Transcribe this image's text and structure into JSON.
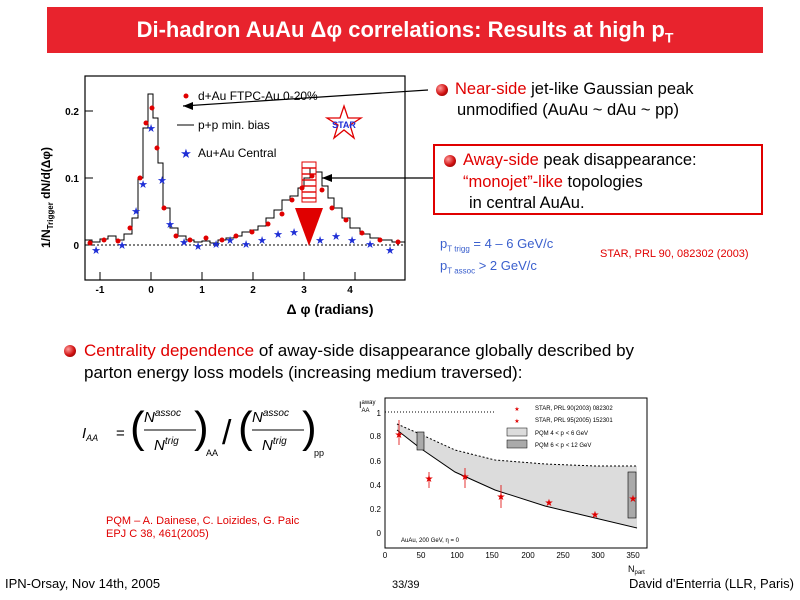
{
  "title": {
    "main": "Di-hadron AuAu Δφ correlations: Results at high p",
    "sub": "T"
  },
  "left_plot": {
    "ylabel": "1/N",
    "ylabel_sub": "Trigger",
    "ylabel_rest": " dN/d(Δφ)",
    "xlabel": "Δ φ (radians)",
    "yticks": [
      "0.2",
      "0.1",
      "0"
    ],
    "xticks": [
      "-1",
      "0",
      "1",
      "2",
      "3",
      "4"
    ],
    "legend": [
      "d+Au FTPC-Au 0-20%",
      "p+p min. bias",
      "Au+Au Central"
    ],
    "logo": "STAR"
  },
  "bullets": {
    "near_highlight": "Near-side",
    "near_rest": " jet-like Gaussian peak",
    "near_line2": "unmodified (AuAu ~ dAu ~ pp)",
    "away_highlight": "Away-side",
    "away_rest": " peak disappearance:",
    "away_line2_hl": "“monojet”-like",
    "away_line2_rest": " topologies",
    "away_line3": "in central AuAu.",
    "central_highlight": "Centrality dependence",
    "central_rest": " of away-side disappearance globally described by",
    "central_line2": "parton energy loss models (increasing medium traversed):"
  },
  "cuts": {
    "trig": "p",
    "trig_sub": "T trigg",
    "trig_rest": " = 4 – 6 GeV/c",
    "assoc": "p",
    "assoc_sub": "T assoc",
    "assoc_rest": " > 2 GeV/c"
  },
  "ref_star": "STAR, PRL 90, 082302 (2003)",
  "formula": {
    "lhs": "I",
    "lhs_sub": "AA",
    "num": "N",
    "num_sup": "assoc",
    "den": "N",
    "den_sup": "trig",
    "sub1": "AA",
    "sub2": "pp"
  },
  "ref_pqm": {
    "line1": "PQM – A. Dainese, C. Loizides, G. Paic",
    "line2": "EPJ C 38, 461(2005)"
  },
  "right_plot": {
    "ylabel": "I",
    "ylabel_sup": "away",
    "ylabel_sub": "AA",
    "yticks": [
      "1",
      "0.8",
      "0.6",
      "0.4",
      "0.2",
      "0"
    ],
    "xticks": [
      "0",
      "50",
      "100",
      "150",
      "200",
      "250",
      "300",
      "350"
    ],
    "xlabel": "N",
    "xlabel_sub": "part",
    "legend": [
      "STAR, PRL 90(2003) 082302",
      "STAR, PRL 95(2005) 152301",
      "PQM  4 < p",
      "PQM  6 < p"
    ],
    "legend_tail": [
      "< 6 GeV",
      "< 12 GeV"
    ],
    "note": "AuAu, 200 GeV, η = 0"
  },
  "footer": {
    "left": "IPN-Orsay, Nov 14th, 2005",
    "center": "33/39",
    "right": "David d'Enterria (LLR, Paris)"
  },
  "colors": {
    "accent": "#e8232d",
    "highlight": "#e00000",
    "blue": "#3a5fcd"
  }
}
